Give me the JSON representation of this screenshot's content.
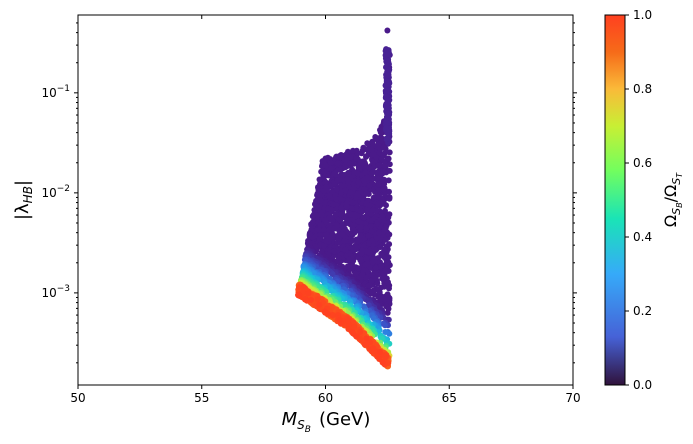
{
  "chart_data": {
    "type": "scatter",
    "title": "",
    "xlabel_main": "M",
    "xlabel_sub": "S",
    "xlabel_subsub": "B",
    "xlabel_unit": "(GeV)",
    "ylabel": "|λ",
    "ylabel_sub": "HB",
    "ylabel_end": "|",
    "x_scale": "linear",
    "y_scale": "log",
    "xlim": [
      50,
      70
    ],
    "ylim": [
      0.00012,
      0.6
    ],
    "x_ticks": [
      {
        "value": 50,
        "label": "50"
      },
      {
        "value": 55,
        "label": "55"
      },
      {
        "value": 60,
        "label": "60"
      },
      {
        "value": 65,
        "label": "65"
      },
      {
        "value": 70,
        "label": "70"
      }
    ],
    "y_ticks": [
      {
        "value": 0.001,
        "label": "10",
        "exp": "−3"
      },
      {
        "value": 0.01,
        "label": "10",
        "exp": "−2"
      },
      {
        "value": 0.1,
        "label": "10",
        "exp": "−1"
      }
    ],
    "colorbar": {
      "label": "Ω",
      "label_sub1": "S",
      "label_subsub1": "B",
      "label_mid": "/Ω",
      "label_sub2": "S",
      "label_subsub2": "T",
      "range": [
        0,
        1
      ],
      "ticks": [
        {
          "value": 0.0,
          "label": "0.0"
        },
        {
          "value": 0.2,
          "label": "0.2"
        },
        {
          "value": 0.4,
          "label": "0.4"
        },
        {
          "value": 0.6,
          "label": "0.6"
        },
        {
          "value": 0.8,
          "label": "0.8"
        },
        {
          "value": 1.0,
          "label": "1.0"
        }
      ],
      "colormap_stops": [
        "#30123b",
        "#4662d7",
        "#36aaf9",
        "#1ae4b6",
        "#72fe5e",
        "#c8ef34",
        "#faba39",
        "#f66b19",
        "#ca2a04",
        "#ff4020"
      ]
    },
    "region": {
      "description_points": "Allowed scan points; lower boundary from ~(58.9, 9.5e-4) to ~(62.5, 1.8e-4); upper ~2.3e-2 rising to ~5e-2 near 62.3; spike to ~0.4 at x=62.5",
      "lower_edge": [
        [
          58.9,
          0.00095
        ],
        [
          60.0,
          0.00063
        ],
        [
          61.0,
          0.00042
        ],
        [
          62.0,
          0.00024
        ],
        [
          62.5,
          0.00018
        ]
      ],
      "upper_edge": [
        [
          59.8,
          0.0095
        ],
        [
          59.9,
          0.022
        ],
        [
          60.5,
          0.024
        ],
        [
          61.5,
          0.029
        ],
        [
          62.0,
          0.036
        ],
        [
          62.35,
          0.05
        ],
        [
          62.5,
          0.25
        ]
      ],
      "spike_top": 0.42,
      "spike_x": 62.5,
      "right_edge_x": 62.6
    }
  }
}
